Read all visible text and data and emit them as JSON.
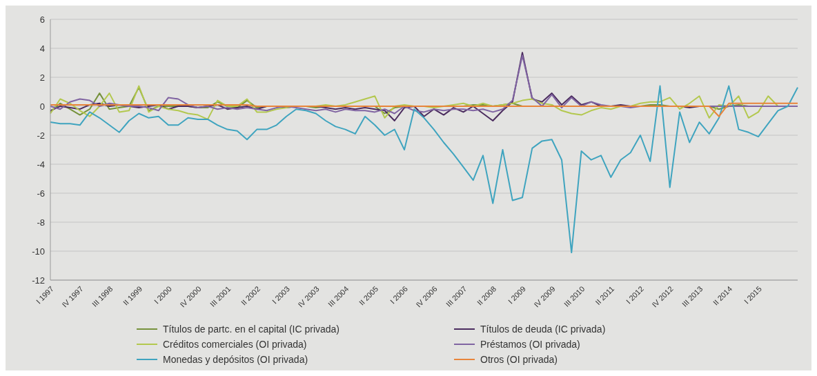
{
  "chart_data": {
    "type": "line",
    "categories": [
      "I 1997",
      null,
      null,
      "IV 1997",
      null,
      null,
      "III 1998",
      null,
      null,
      "II 1999",
      null,
      null,
      "I 2000",
      null,
      null,
      "IV 2000",
      null,
      null,
      "III 2001",
      null,
      null,
      "II 2002",
      null,
      null,
      "I 2003",
      null,
      null,
      "IV 2003",
      null,
      null,
      "III 2004",
      null,
      null,
      "II 2005",
      null,
      null,
      "I 2006",
      null,
      null,
      "IV 2006",
      null,
      null,
      "III 2007",
      null,
      null,
      "II 2008",
      null,
      null,
      "I 2009",
      null,
      null,
      "IV 2009",
      null,
      null,
      "III 2010",
      null,
      null,
      "II 2011",
      null,
      null,
      "I 2012",
      null,
      null,
      "IV 2012",
      null,
      null,
      "III 2013",
      null,
      null,
      "II 2014",
      null,
      null,
      "I 2015",
      null,
      null,
      null,
      null
    ],
    "series": [
      {
        "name": "Títulos de partc. en el capital (IC privada)",
        "color": "#76923c",
        "values": [
          -0.4,
          0.2,
          -0.2,
          -0.6,
          -0.2,
          0.9,
          -0.2,
          -0.1,
          0.0,
          1.3,
          -0.3,
          0.0,
          0.0,
          0.0,
          0.0,
          -0.1,
          -0.1,
          0.3,
          0.0,
          -0.1,
          0.4,
          -0.1,
          0.0,
          0.0,
          0.0,
          0.0,
          0.0,
          -0.1,
          0.0,
          0.0,
          0.0,
          0.0,
          0.0,
          0.0,
          -0.5,
          -0.1,
          0.0,
          0.0,
          0.0,
          0.0,
          0.0,
          0.0,
          0.0,
          0.1,
          0.1,
          0.0,
          0.1,
          0.2,
          0.0,
          0.0,
          0.0,
          0.0,
          0.0,
          0.0,
          0.0,
          0.0,
          0.0,
          0.0,
          0.0,
          0.0,
          0.0,
          0.1,
          0.1,
          0.0,
          0.0,
          0.0,
          0.0,
          0.0,
          -0.2,
          0.0,
          0.1,
          0.0,
          0.0,
          0.0,
          null,
          null,
          null
        ]
      },
      {
        "name": "Títulos de deuda (IC privada)",
        "color": "#4b2c5e",
        "values": [
          -0.3,
          0.0,
          -0.1,
          -0.2,
          0.1,
          0.2,
          0.0,
          0.1,
          0.0,
          -0.1,
          0.0,
          0.1,
          -0.2,
          0.0,
          0.0,
          -0.1,
          0.0,
          0.1,
          -0.2,
          -0.1,
          0.0,
          -0.2,
          0.0,
          0.0,
          -0.1,
          0.0,
          0.0,
          0.0,
          -0.1,
          -0.2,
          -0.1,
          -0.2,
          -0.1,
          -0.2,
          -0.3,
          -1.0,
          -0.1,
          0.0,
          -0.7,
          -0.2,
          -0.6,
          -0.1,
          -0.4,
          0.0,
          -0.5,
          -1.0,
          -0.3,
          0.3,
          3.7,
          0.5,
          0.3,
          0.9,
          0.1,
          0.7,
          0.1,
          0.3,
          0.0,
          0.0,
          0.1,
          0.0,
          0.0,
          0.0,
          0.0,
          0.0,
          0.0,
          -0.1,
          0.0,
          0.0,
          0.0,
          0.0,
          0.0,
          0.0,
          0.0,
          0.0,
          0.0,
          0.0,
          0.0
        ]
      },
      {
        "name": "Créditos comerciales (OI privada)",
        "color": "#b3c84e",
        "values": [
          -0.5,
          0.5,
          0.2,
          -0.3,
          -0.7,
          0.0,
          0.9,
          -0.4,
          -0.3,
          1.4,
          -0.4,
          0.0,
          -0.2,
          -0.3,
          -0.5,
          -0.6,
          -0.9,
          0.4,
          0.0,
          0.0,
          0.5,
          -0.4,
          -0.4,
          -0.2,
          -0.1,
          0.0,
          0.0,
          0.0,
          0.1,
          0.0,
          0.1,
          0.3,
          0.5,
          0.7,
          -0.8,
          0.0,
          0.1,
          0.0,
          0.0,
          -0.1,
          0.0,
          0.1,
          0.2,
          0.0,
          0.2,
          0.0,
          0.1,
          0.2,
          0.4,
          0.5,
          0.2,
          0.1,
          -0.3,
          -0.5,
          -0.6,
          -0.3,
          -0.1,
          -0.2,
          0.0,
          0.0,
          0.2,
          0.3,
          0.3,
          0.6,
          -0.2,
          0.2,
          0.7,
          -0.8,
          0.1,
          0.0,
          0.7,
          -0.8,
          -0.4,
          0.7,
          0.0,
          0.0,
          0.0
        ]
      },
      {
        "name": "Préstamos (OI privada)",
        "color": "#8064a2",
        "values": [
          0.0,
          -0.2,
          0.3,
          0.5,
          0.4,
          0.0,
          0.2,
          0.1,
          0.0,
          0.0,
          -0.1,
          -0.3,
          0.6,
          0.5,
          0.1,
          -0.1,
          0.0,
          -0.2,
          -0.1,
          -0.2,
          -0.1,
          -0.2,
          -0.3,
          -0.1,
          0.0,
          -0.1,
          -0.2,
          -0.3,
          -0.2,
          -0.4,
          -0.2,
          -0.3,
          -0.3,
          -0.4,
          -0.2,
          -0.5,
          0.0,
          -0.3,
          -0.4,
          -0.2,
          -0.3,
          -0.2,
          -0.2,
          -0.3,
          -0.2,
          -0.4,
          -0.2,
          0.4,
          3.5,
          0.6,
          0.0,
          0.8,
          -0.1,
          0.6,
          0.0,
          0.3,
          0.1,
          0.0,
          0.0,
          -0.1,
          0.0,
          0.0,
          0.0,
          0.0,
          0.0,
          0.0,
          0.0,
          0.0,
          0.0,
          0.0,
          0.0,
          0.0,
          0.0,
          0.0,
          0.0,
          0.0,
          0.0
        ]
      },
      {
        "name": "Monedas y depósitos (OI privada)",
        "color": "#3fa4bf",
        "values": [
          -1.1,
          -1.2,
          -1.2,
          -1.3,
          -0.4,
          -0.8,
          -1.3,
          -1.8,
          -1.0,
          -0.5,
          -0.8,
          -0.7,
          -1.3,
          -1.3,
          -0.8,
          -0.9,
          -0.9,
          -1.3,
          -1.6,
          -1.7,
          -2.3,
          -1.6,
          -1.6,
          -1.3,
          -0.7,
          -0.2,
          -0.3,
          -0.5,
          -1.0,
          -1.4,
          -1.6,
          -1.9,
          -0.7,
          -1.3,
          -2.0,
          -1.6,
          -3.0,
          -0.2,
          -0.8,
          -1.6,
          -2.5,
          -3.3,
          -4.2,
          -5.1,
          -3.4,
          -6.7,
          -3.0,
          -6.5,
          -6.3,
          -2.9,
          -2.4,
          -2.3,
          -3.7,
          -10.1,
          -3.1,
          -3.7,
          -3.4,
          -4.9,
          -3.7,
          -3.2,
          -2.0,
          -3.8,
          1.4,
          -5.6,
          -0.4,
          -2.5,
          -1.1,
          -1.9,
          -0.8,
          1.4,
          -1.6,
          -1.8,
          -2.1,
          -1.2,
          -0.3,
          0.0,
          1.3
        ]
      },
      {
        "name": "Otros (OI privada)",
        "color": "#e8843a",
        "values": [
          0.1,
          0.1,
          0.1,
          0.1,
          0.1,
          0.1,
          0.1,
          0.1,
          0.1,
          0.1,
          0.1,
          0.1,
          0.1,
          0.1,
          0.1,
          0.1,
          0.1,
          0.1,
          0.1,
          0.1,
          0.1,
          0.0,
          0.0,
          0.0,
          0.0,
          0.0,
          0.0,
          0.0,
          0.0,
          0.0,
          0.0,
          0.0,
          0.0,
          0.0,
          0.0,
          0.0,
          0.0,
          0.0,
          0.0,
          0.0,
          0.0,
          0.0,
          0.0,
          0.0,
          0.0,
          0.0,
          0.0,
          0.0,
          0.0,
          0.0,
          0.0,
          0.0,
          0.0,
          0.0,
          0.0,
          0.0,
          0.0,
          0.0,
          0.0,
          0.0,
          0.0,
          0.0,
          0.0,
          0.0,
          0.0,
          0.0,
          0.0,
          0.0,
          -0.7,
          0.2,
          0.2,
          0.2,
          0.2,
          0.2,
          0.2,
          0.2,
          0.2
        ]
      }
    ],
    "ylim": [
      -12,
      6
    ],
    "yticks": [
      -12,
      -10,
      -8,
      -6,
      -4,
      -2,
      0,
      2,
      4,
      6
    ],
    "grid": "y",
    "legend": "bottom",
    "marker": "none",
    "line_style": "solid"
  }
}
